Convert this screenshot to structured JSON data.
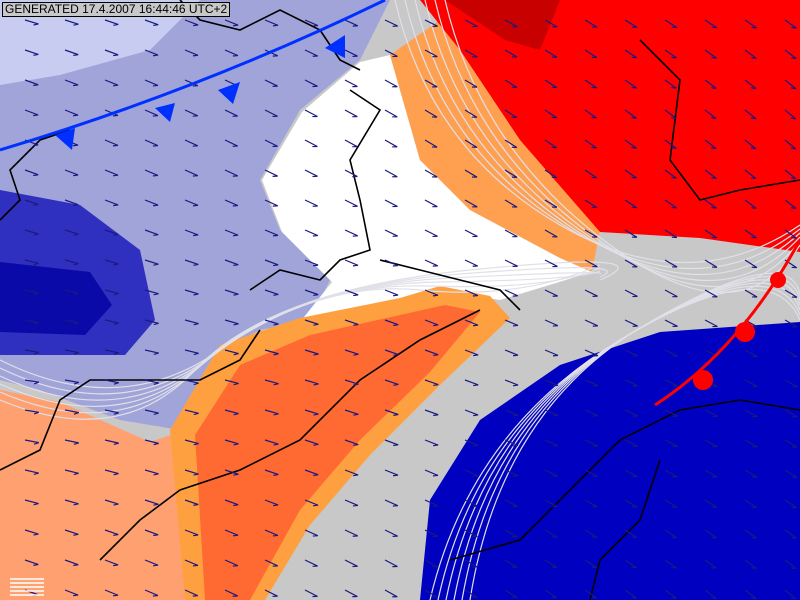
{
  "header": {
    "generated_label": "GENERATED 17.4.2007 16:44:46 UTC+2"
  },
  "map": {
    "type": "weather-forecast-map",
    "colors": {
      "cold_light": "#a0a4d8",
      "cold_corner": "#c8ccf0",
      "cold_mid": "#3030c0",
      "cold_core": "#0a0aa8",
      "neutral_white": "#ffffff",
      "neutral_grey": "#c8c8c8",
      "warm_red": "#ff0000",
      "warm_dark_red": "#c80000",
      "warm_orange": "#ff6a33",
      "warm_band": "#ffa040",
      "warm_salmon": "#ffa070",
      "cold_bottom": "#0000c0",
      "cold_front": "#0030ff",
      "warm_front": "#ff0000",
      "wind_arrow": "#1a1a80"
    },
    "fronts": [
      "cold-front",
      "warm-front"
    ],
    "wind_direction": "north-west to south-east"
  },
  "legend": {
    "icon": "legend-bars-icon"
  }
}
